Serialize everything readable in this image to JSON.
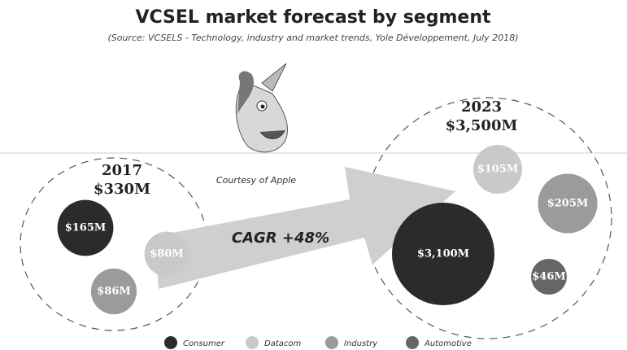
{
  "chart_data": {
    "type": "bubble",
    "title": "VCSEL market forecast by segment",
    "subtitle": "(Source: VCSELS - Technology, industry and market trends, Yole Développement, July 2018)",
    "categories": [
      "2017",
      "2023"
    ],
    "totals": [
      330,
      3500
    ],
    "total_labels": [
      "$330M",
      "$3,500M"
    ],
    "annotations": {
      "credit": "Courtesy of Apple",
      "growth": "CAGR +48%"
    },
    "series": [
      {
        "name": "Consumer",
        "color": "#2b2b2b",
        "values": [
          165,
          3100
        ],
        "value_labels": [
          "$165M",
          "$3,100M"
        ]
      },
      {
        "name": "Datacom",
        "color": "#c9c9c9",
        "values": [
          80,
          105
        ],
        "value_labels": [
          "$80M",
          "$105M"
        ]
      },
      {
        "name": "Industry",
        "color": "#9b9b9b",
        "values": [
          86,
          205
        ],
        "value_labels": [
          "$86M",
          "$205M"
        ]
      },
      {
        "name": "Automotive",
        "color": "#666666",
        "values": [
          null,
          46
        ],
        "value_labels": [
          null,
          "$46M"
        ]
      }
    ]
  }
}
